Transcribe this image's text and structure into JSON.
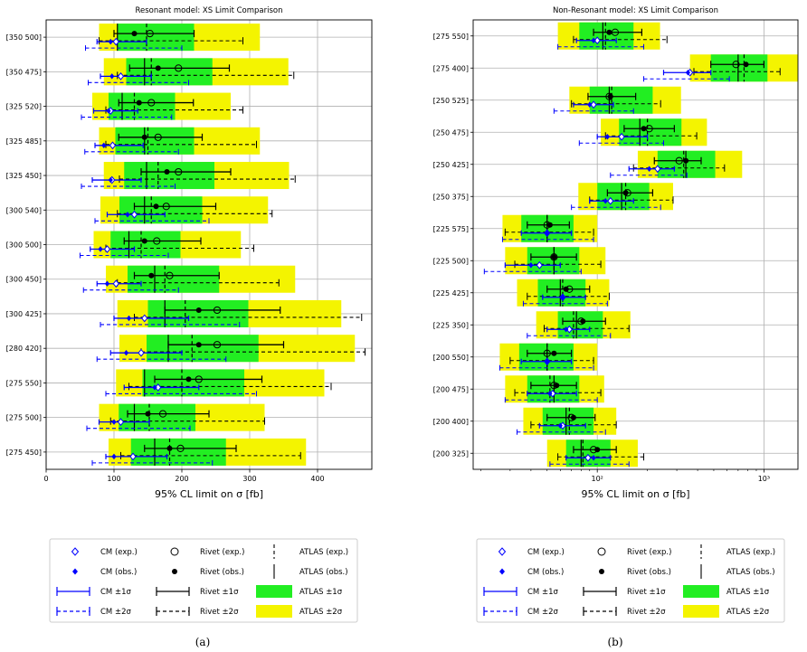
{
  "captions": {
    "a": "(a)",
    "b": "(b)"
  },
  "legend_labels": {
    "cm_exp": "CM (exp.)",
    "rivet_exp": "Rivet (exp.)",
    "atlas_exp": "ATLAS (exp.)",
    "cm_obs": "CM (obs.)",
    "rivet_obs": "Rivet (obs.)",
    "atlas_obs": "ATLAS (obs.)",
    "cm_1s": "CM ±1σ",
    "rivet_1s": "Rivet ±1σ",
    "atlas_1s": "ATLAS ±1σ",
    "cm_2s": "CM ±2σ",
    "rivet_2s": "Rivet ±2σ",
    "atlas_2s": "ATLAS ±2σ"
  },
  "colors": {
    "cm": "#0000ff",
    "rivet": "#000000",
    "atlas_1s": "#22ee22",
    "atlas_2s": "#f4f400"
  },
  "chart_data": [
    {
      "type": "bar",
      "title": "Resonant model: XS Limit Comparison",
      "xlabel": "95% CL limit on σ [fb]",
      "xscale": "linear",
      "xlim": [
        0,
        480
      ],
      "xticks": [
        0,
        100,
        200,
        300,
        400
      ],
      "xtick_labels": [
        "0",
        "100",
        "200",
        "300",
        "400"
      ],
      "grid": true,
      "categories": [
        "[350 500]",
        "[350 475]",
        "[325 520]",
        "[325 485]",
        "[325 450]",
        "[300 540]",
        "[300 500]",
        "[300 450]",
        "[300 425]",
        "[280 420]",
        "[275 550]",
        "[275 500]",
        "[275 450]"
      ],
      "atlas": [
        {
          "obs": 105,
          "exp": 148,
          "s1": [
            105,
            218
          ],
          "s2": [
            78,
            315
          ]
        },
        {
          "obs": 145,
          "exp": 155,
          "s1": [
            118,
            245
          ],
          "s2": [
            85,
            357
          ]
        },
        {
          "obs": 112,
          "exp": 130,
          "s1": [
            92,
            190
          ],
          "s2": [
            68,
            272
          ]
        },
        {
          "obs": 145,
          "exp": 150,
          "s1": [
            102,
            218
          ],
          "s2": [
            78,
            315
          ]
        },
        {
          "obs": 148,
          "exp": 165,
          "s1": [
            115,
            248
          ],
          "s2": [
            85,
            358
          ]
        },
        {
          "obs": 145,
          "exp": 155,
          "s1": [
            108,
            230
          ],
          "s2": [
            80,
            327
          ]
        },
        {
          "obs": 122,
          "exp": 140,
          "s1": [
            95,
            198
          ],
          "s2": [
            70,
            287
          ]
        },
        {
          "obs": 160,
          "exp": 175,
          "s1": [
            120,
            255
          ],
          "s2": [
            88,
            367
          ]
        },
        {
          "obs": 175,
          "exp": 205,
          "s1": [
            150,
            298
          ],
          "s2": [
            105,
            435
          ]
        },
        {
          "obs": 180,
          "exp": 215,
          "s1": [
            148,
            313
          ],
          "s2": [
            108,
            455
          ]
        },
        {
          "obs": 145,
          "exp": 200,
          "s1": [
            142,
            292
          ],
          "s2": [
            103,
            410
          ]
        },
        {
          "obs": 130,
          "exp": 152,
          "s1": [
            107,
            220
          ],
          "s2": [
            78,
            322
          ]
        },
        {
          "obs": 160,
          "exp": 182,
          "s1": [
            125,
            265
          ],
          "s2": [
            92,
            383
          ]
        }
      ],
      "rivet": [
        {
          "obs": 130,
          "exp": 153,
          "s1": [
            100,
            218
          ],
          "s2": [
            78,
            290
          ]
        },
        {
          "obs": 165,
          "exp": 195,
          "s1": [
            123,
            270
          ],
          "s2": [
            105,
            365
          ]
        },
        {
          "obs": 137,
          "exp": 155,
          "s1": [
            107,
            217
          ],
          "s2": [
            88,
            290
          ]
        },
        {
          "obs": 145,
          "exp": 165,
          "s1": [
            107,
            230
          ],
          "s2": [
            88,
            310
          ]
        },
        {
          "obs": 178,
          "exp": 195,
          "s1": [
            140,
            272
          ],
          "s2": [
            108,
            367
          ]
        },
        {
          "obs": 162,
          "exp": 177,
          "s1": [
            130,
            250
          ],
          "s2": [
            105,
            333
          ]
        },
        {
          "obs": 145,
          "exp": 163,
          "s1": [
            115,
            228
          ],
          "s2": [
            88,
            306
          ]
        },
        {
          "obs": 155,
          "exp": 182,
          "s1": [
            130,
            255
          ],
          "s2": [
            105,
            343
          ]
        },
        {
          "obs": 225,
          "exp": 252,
          "s1": [
            175,
            345
          ],
          "s2": [
            130,
            465
          ]
        },
        {
          "obs": 225,
          "exp": 252,
          "s1": [
            180,
            350
          ],
          "s2": [
            140,
            470
          ]
        },
        {
          "obs": 210,
          "exp": 225,
          "s1": [
            160,
            318
          ],
          "s2": [
            122,
            420
          ]
        },
        {
          "obs": 150,
          "exp": 172,
          "s1": [
            120,
            240
          ],
          "s2": [
            95,
            322
          ]
        },
        {
          "obs": 182,
          "exp": 198,
          "s1": [
            145,
            280
          ],
          "s2": [
            110,
            375
          ]
        }
      ],
      "cm": [
        {
          "obs": 95,
          "exp": 103,
          "s1": [
            75,
            148
          ],
          "s2": [
            58,
            200
          ]
        },
        {
          "obs": 97,
          "exp": 110,
          "s1": [
            80,
            155
          ],
          "s2": [
            62,
            210
          ]
        },
        {
          "obs": 92,
          "exp": 95,
          "s1": [
            70,
            135
          ],
          "s2": [
            52,
            185
          ]
        },
        {
          "obs": 85,
          "exp": 98,
          "s1": [
            72,
            143
          ],
          "s2": [
            57,
            195
          ]
        },
        {
          "obs": 95,
          "exp": 97,
          "s1": [
            68,
            140
          ],
          "s2": [
            52,
            190
          ]
        },
        {
          "obs": 120,
          "exp": 130,
          "s1": [
            90,
            175
          ],
          "s2": [
            72,
            240
          ]
        },
        {
          "obs": 80,
          "exp": 90,
          "s1": [
            65,
            130
          ],
          "s2": [
            50,
            180
          ]
        },
        {
          "obs": 90,
          "exp": 103,
          "s1": [
            75,
            140
          ],
          "s2": [
            55,
            195
          ]
        },
        {
          "obs": 122,
          "exp": 145,
          "s1": [
            100,
            210
          ],
          "s2": [
            80,
            285
          ]
        },
        {
          "obs": 118,
          "exp": 140,
          "s1": [
            95,
            200
          ],
          "s2": [
            75,
            265
          ]
        },
        {
          "obs": 160,
          "exp": 165,
          "s1": [
            115,
            225
          ],
          "s2": [
            88,
            310
          ]
        },
        {
          "obs": 100,
          "exp": 110,
          "s1": [
            78,
            152
          ],
          "s2": [
            60,
            212
          ]
        },
        {
          "obs": 100,
          "exp": 128,
          "s1": [
            88,
            178
          ],
          "s2": [
            68,
            245
          ]
        }
      ]
    },
    {
      "type": "bar",
      "title": "Non-Resonant model: XS Limit Comparison",
      "xlabel": "95% CL limit on σ [fb]",
      "xscale": "log",
      "xlim": [
        18,
        1600
      ],
      "xticks": [
        100,
        1000
      ],
      "xtick_labels": [
        "10²",
        "10³"
      ],
      "grid": true,
      "categories": [
        "[275 550]",
        "[275 400]",
        "[250 525]",
        "[250 475]",
        "[250 425]",
        "[250 375]",
        "[225 575]",
        "[225 500]",
        "[225 425]",
        "[225 350]",
        "[200 550]",
        "[200 475]",
        "[200 400]",
        "[200 325]"
      ],
      "atlas": [
        {
          "obs": 108,
          "exp": 112,
          "s1": [
            78,
            165
          ],
          "s2": [
            58,
            238
          ]
        },
        {
          "obs": 700,
          "exp": 760,
          "s1": [
            480,
            1050
          ],
          "s2": [
            360,
            1600
          ]
        },
        {
          "obs": 118,
          "exp": 122,
          "s1": [
            90,
            215
          ],
          "s2": [
            68,
            318
          ]
        },
        {
          "obs": 180,
          "exp": 200,
          "s1": [
            135,
            320
          ],
          "s2": [
            105,
            455
          ]
        },
        {
          "obs": 340,
          "exp": 330,
          "s1": [
            230,
            510
          ],
          "s2": [
            175,
            740
          ]
        },
        {
          "obs": 140,
          "exp": 148,
          "s1": [
            100,
            205
          ],
          "s2": [
            77,
            285
          ]
        },
        {
          "obs": 50,
          "exp": 50,
          "s1": [
            35,
            72
          ],
          "s2": [
            27,
            100
          ]
        },
        {
          "obs": 55,
          "exp": 55,
          "s1": [
            38,
            78
          ],
          "s2": [
            28,
            112
          ]
        },
        {
          "obs": 60,
          "exp": 62,
          "s1": [
            44,
            85
          ],
          "s2": [
            33,
            118
          ]
        },
        {
          "obs": 75,
          "exp": 72,
          "s1": [
            58,
            108
          ],
          "s2": [
            43,
            158
          ]
        },
        {
          "obs": 50,
          "exp": 50,
          "s1": [
            34,
            72
          ],
          "s2": [
            26,
            100
          ]
        },
        {
          "obs": 55,
          "exp": 52,
          "s1": [
            38,
            78
          ],
          "s2": [
            28,
            110
          ]
        },
        {
          "obs": 65,
          "exp": 68,
          "s1": [
            47,
            95
          ],
          "s2": [
            36,
            130
          ]
        },
        {
          "obs": 80,
          "exp": 82,
          "s1": [
            65,
            120
          ],
          "s2": [
            50,
            175
          ]
        }
      ],
      "rivet": [
        {
          "obs": 118,
          "exp": 128,
          "s1": [
            95,
            185
          ],
          "s2": [
            72,
            262
          ]
        },
        {
          "obs": 780,
          "exp": 680,
          "s1": [
            480,
            1000
          ],
          "s2": [
            380,
            1250
          ]
        },
        {
          "obs": 120,
          "exp": 118,
          "s1": [
            88,
            170
          ],
          "s2": [
            70,
            240
          ]
        },
        {
          "obs": 190,
          "exp": 205,
          "s1": [
            145,
            290
          ],
          "s2": [
            112,
            395
          ]
        },
        {
          "obs": 340,
          "exp": 310,
          "s1": [
            220,
            420
          ],
          "s2": [
            165,
            580
          ]
        },
        {
          "obs": 148,
          "exp": 152,
          "s1": [
            115,
            215
          ],
          "s2": [
            90,
            285
          ]
        },
        {
          "obs": 52,
          "exp": 50,
          "s1": [
            38,
            68
          ],
          "s2": [
            28,
            95
          ]
        },
        {
          "obs": 55,
          "exp": 55,
          "s1": [
            40,
            75
          ],
          "s2": [
            32,
            105
          ]
        },
        {
          "obs": 65,
          "exp": 68,
          "s1": [
            50,
            90
          ],
          "s2": [
            38,
            118
          ]
        },
        {
          "obs": 82,
          "exp": 80,
          "s1": [
            62,
            112
          ],
          "s2": [
            48,
            155
          ]
        },
        {
          "obs": 55,
          "exp": 50,
          "s1": [
            38,
            70
          ],
          "s2": [
            30,
            95
          ]
        },
        {
          "obs": 57,
          "exp": 55,
          "s1": [
            40,
            75
          ],
          "s2": [
            32,
            105
          ]
        },
        {
          "obs": 72,
          "exp": 70,
          "s1": [
            50,
            97
          ],
          "s2": [
            40,
            130
          ]
        },
        {
          "obs": 100,
          "exp": 95,
          "s1": [
            72,
            130
          ],
          "s2": [
            58,
            190
          ]
        }
      ],
      "cm": [
        {
          "obs": 95,
          "exp": 100,
          "s1": [
            75,
            130
          ],
          "s2": [
            58,
            190
          ]
        },
        {
          "obs": 350,
          "exp": 360,
          "s1": [
            250,
            480
          ],
          "s2": [
            190,
            620
          ]
        },
        {
          "obs": 90,
          "exp": 95,
          "s1": [
            72,
            125
          ],
          "s2": [
            55,
            165
          ]
        },
        {
          "obs": 115,
          "exp": 140,
          "s1": [
            100,
            200
          ],
          "s2": [
            78,
            250
          ]
        },
        {
          "obs": 205,
          "exp": 230,
          "s1": [
            155,
            290
          ],
          "s2": [
            120,
            345
          ]
        },
        {
          "obs": 112,
          "exp": 120,
          "s1": [
            90,
            165
          ],
          "s2": [
            70,
            240
          ]
        },
        {
          "obs": 50,
          "exp": 50,
          "s1": [
            35,
            70
          ],
          "s2": [
            27,
            95
          ]
        },
        {
          "obs": 40,
          "exp": 45,
          "s1": [
            28,
            60
          ],
          "s2": [
            21,
            80
          ]
        },
        {
          "obs": 62,
          "exp": 62,
          "s1": [
            47,
            85
          ],
          "s2": [
            36,
            115
          ]
        },
        {
          "obs": 65,
          "exp": 68,
          "s1": [
            50,
            90
          ],
          "s2": [
            38,
            120
          ]
        },
        {
          "obs": 50,
          "exp": 50,
          "s1": [
            35,
            70
          ],
          "s2": [
            26,
            95
          ]
        },
        {
          "obs": 52,
          "exp": 54,
          "s1": [
            38,
            75
          ],
          "s2": [
            28,
            100
          ]
        },
        {
          "obs": 60,
          "exp": 62,
          "s1": [
            45,
            85
          ],
          "s2": [
            33,
            112
          ]
        },
        {
          "obs": 95,
          "exp": 88,
          "s1": [
            65,
            120
          ],
          "s2": [
            52,
            155
          ]
        }
      ]
    }
  ]
}
